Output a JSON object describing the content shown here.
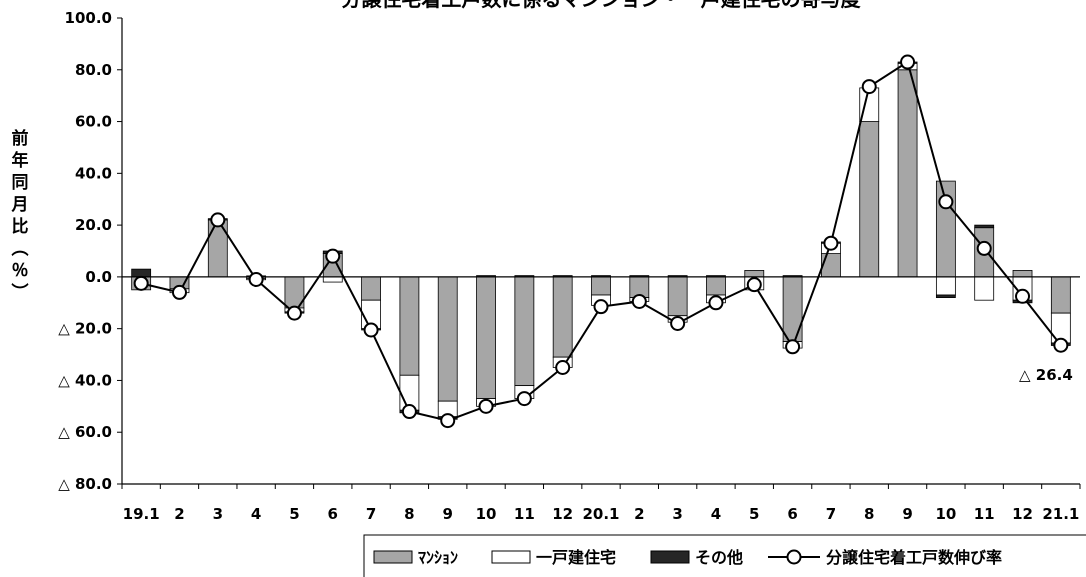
{
  "chart_data": {
    "type": "bar",
    "title": "分譲住宅着工戸数に係るマンション・一戸建住宅の寄与度",
    "ylabel": "前年同月比（％）",
    "ylim": [
      -80,
      100
    ],
    "y_ticks": [
      {
        "value": 100,
        "label": "100.0"
      },
      {
        "value": 80,
        "label": "80.0"
      },
      {
        "value": 60,
        "label": "60.0"
      },
      {
        "value": 40,
        "label": "40.0"
      },
      {
        "value": 20,
        "label": "20.0"
      },
      {
        "value": 0,
        "label": "0.0"
      },
      {
        "value": -20,
        "label": "△ 20.0"
      },
      {
        "value": -40,
        "label": "△ 40.0"
      },
      {
        "value": -60,
        "label": "△ 60.0"
      },
      {
        "value": -80,
        "label": "△ 80.0"
      }
    ],
    "categories": [
      "19.1",
      "2",
      "3",
      "4",
      "5",
      "6",
      "7",
      "8",
      "9",
      "10",
      "11",
      "12",
      "20.1",
      "2",
      "3",
      "4",
      "5",
      "6",
      "7",
      "8",
      "9",
      "10",
      "11",
      "12",
      "21.1"
    ],
    "series": [
      {
        "name": "ﾏﾝｼｮﾝ",
        "kind": "bar",
        "color": "#a6a6a6",
        "values": [
          -5.0,
          -4.6,
          22.0,
          -0.6,
          -12.0,
          9.0,
          -9.0,
          -38.0,
          -48.0,
          -47.0,
          -42.0,
          -31.0,
          -7.0,
          -8.0,
          -15.0,
          -7.0,
          2.5,
          -25.0,
          9.0,
          60.0,
          80.0,
          37.0,
          19.0,
          2.5,
          -14.0
        ]
      },
      {
        "name": "一戸建住宅",
        "kind": "bar",
        "color": "#ffffff",
        "values": [
          0.0,
          -1.5,
          0.0,
          -0.5,
          -1.5,
          -2.0,
          -11.0,
          -13.5,
          -6.0,
          -3.0,
          -5.0,
          -4.0,
          -4.0,
          -1.5,
          -2.5,
          -3.0,
          -5.0,
          -2.5,
          4.0,
          13.0,
          2.5,
          -7.0,
          -9.0,
          -9.0,
          -11.5
        ]
      },
      {
        "name": "その他",
        "kind": "bar",
        "color": "#262626",
        "values": [
          3.0,
          0.0,
          0.5,
          0.4,
          -0.5,
          1.0,
          -0.5,
          -1.0,
          -1.0,
          0.5,
          0.5,
          0.5,
          0.5,
          0.5,
          0.5,
          0.5,
          0.0,
          0.5,
          0.5,
          0.0,
          0.5,
          -1.0,
          1.0,
          -1.0,
          -1.0
        ]
      },
      {
        "name": "分譲住宅着工戸数伸び率",
        "kind": "line",
        "color": "#000000",
        "values": [
          -2.5,
          -6.0,
          22.0,
          -1.0,
          -14.0,
          8.0,
          -20.5,
          -52.0,
          -55.5,
          -50.0,
          -47.0,
          -35.0,
          -11.5,
          -9.5,
          -18.0,
          -10.0,
          -3.0,
          -27.0,
          13.0,
          73.5,
          83.0,
          29.0,
          11.0,
          -7.5,
          -26.4
        ]
      }
    ],
    "annotation": "△ 26.4",
    "legend_position": "bottom-right",
    "grid": false
  }
}
